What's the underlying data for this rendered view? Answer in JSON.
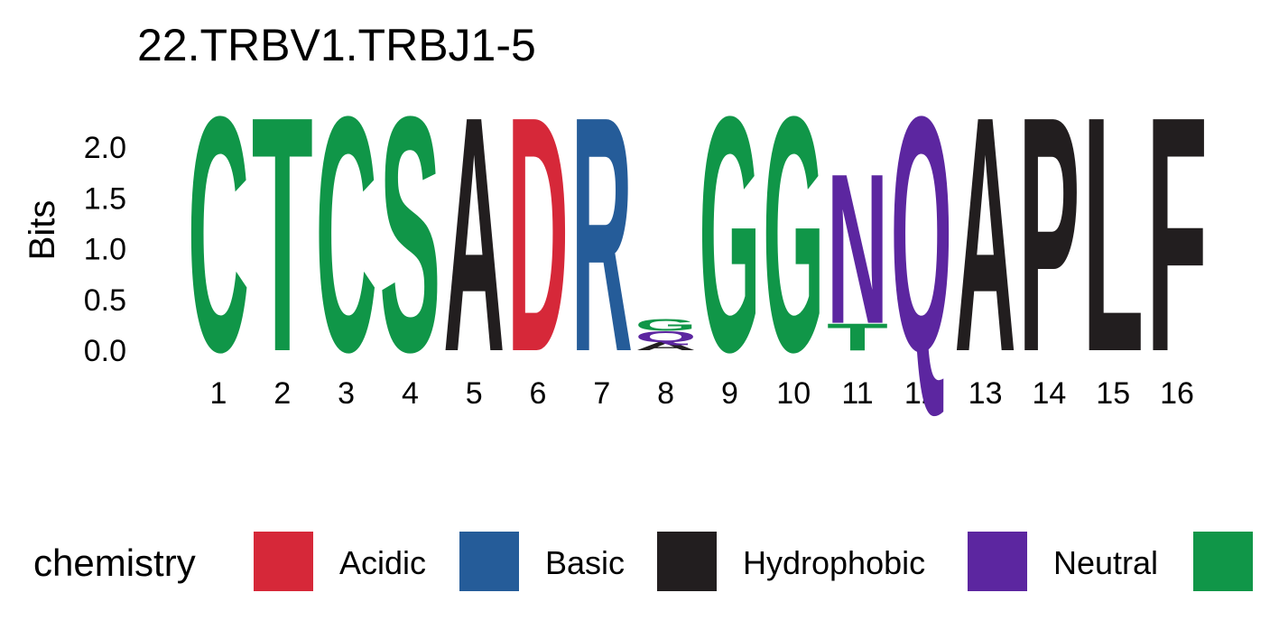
{
  "chart_data": {
    "type": "logo",
    "title": "22.TRBV1.TRBJ1-5",
    "y_label": "Bits",
    "ylim": [
      0,
      2.4
    ],
    "yticks": [
      {
        "value": 0,
        "label": "0.0"
      },
      {
        "value": 0.5,
        "label": "0.5"
      },
      {
        "value": 1,
        "label": "1.0"
      },
      {
        "value": 1.5,
        "label": "1.5"
      },
      {
        "value": 2,
        "label": "2.0"
      }
    ],
    "categories": [
      "1",
      "2",
      "3",
      "4",
      "5",
      "6",
      "7",
      "8",
      "9",
      "10",
      "11",
      "12",
      "13",
      "14",
      "15",
      "16"
    ],
    "stacks": [
      {
        "letters": [
          "C"
        ],
        "values": [
          2.38
        ],
        "colors": [
          "#109648"
        ]
      },
      {
        "letters": [
          "T"
        ],
        "values": [
          2.38
        ],
        "colors": [
          "#109648"
        ]
      },
      {
        "letters": [
          "C"
        ],
        "values": [
          2.38
        ],
        "colors": [
          "#109648"
        ]
      },
      {
        "letters": [
          "S"
        ],
        "values": [
          2.38
        ],
        "colors": [
          "#109648"
        ]
      },
      {
        "letters": [
          "A"
        ],
        "values": [
          2.38
        ],
        "colors": [
          "#221e1f"
        ]
      },
      {
        "letters": [
          "D"
        ],
        "values": [
          2.38
        ],
        "colors": [
          "#d62839"
        ]
      },
      {
        "letters": [
          "R"
        ],
        "values": [
          2.38
        ],
        "colors": [
          "#255c99"
        ]
      },
      {
        "letters": [
          "A",
          "Q",
          "G"
        ],
        "values": [
          0.08,
          0.11,
          0.12
        ],
        "colors": [
          "#221e1f",
          "#5c26a0",
          "#109648"
        ]
      },
      {
        "letters": [
          "G"
        ],
        "values": [
          2.38
        ],
        "colors": [
          "#109648"
        ]
      },
      {
        "letters": [
          "G"
        ],
        "values": [
          2.38
        ],
        "colors": [
          "#109648"
        ]
      },
      {
        "letters": [
          "T",
          "N"
        ],
        "values": [
          0.27,
          1.52
        ],
        "colors": [
          "#109648",
          "#5c26a0"
        ]
      },
      {
        "letters": [
          "Q"
        ],
        "values": [
          2.38
        ],
        "colors": [
          "#5c26a0"
        ]
      },
      {
        "letters": [
          "A"
        ],
        "values": [
          2.38
        ],
        "colors": [
          "#221e1f"
        ]
      },
      {
        "letters": [
          "P"
        ],
        "values": [
          2.38
        ],
        "colors": [
          "#221e1f"
        ]
      },
      {
        "letters": [
          "L"
        ],
        "values": [
          2.38
        ],
        "colors": [
          "#221e1f"
        ]
      },
      {
        "letters": [
          "F"
        ],
        "values": [
          2.38
        ],
        "colors": [
          "#221e1f"
        ]
      }
    ],
    "legend": {
      "title": "chemistry",
      "items": [
        {
          "name": "Acidic",
          "color": "#d62839"
        },
        {
          "name": "Basic",
          "color": "#255c99"
        },
        {
          "name": "Hydrophobic",
          "color": "#221e1f"
        },
        {
          "name": "Neutral",
          "color": "#5c26a0"
        },
        {
          "name": null,
          "color": "#109648"
        }
      ]
    }
  }
}
